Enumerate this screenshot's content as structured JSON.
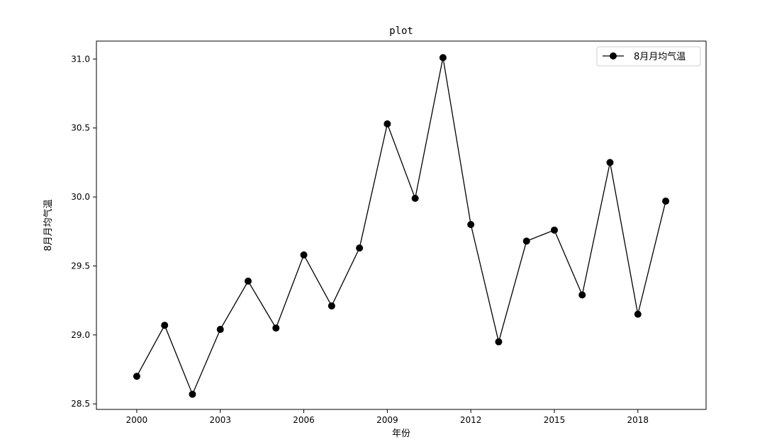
{
  "chart_data": {
    "type": "line",
    "title": "plot",
    "xlabel": "年份",
    "ylabel": "8月月均气温",
    "x": [
      2000,
      2001,
      2002,
      2003,
      2004,
      2005,
      2006,
      2007,
      2008,
      2009,
      2010,
      2011,
      2012,
      2013,
      2014,
      2015,
      2016,
      2017,
      2018,
      2019
    ],
    "series": [
      {
        "name": "8月月均气温",
        "color": "#000000",
        "marker": "circle",
        "values": [
          28.7,
          29.07,
          28.57,
          29.04,
          29.39,
          29.05,
          29.58,
          29.21,
          29.63,
          30.53,
          29.99,
          31.01,
          29.8,
          28.95,
          29.68,
          29.76,
          29.29,
          30.25,
          29.15,
          29.97
        ]
      }
    ],
    "xlim": [
      1998.55,
      2020.45
    ],
    "ylim": [
      28.46,
      31.13
    ],
    "xticks": [
      2000,
      2003,
      2006,
      2009,
      2012,
      2015,
      2018
    ],
    "yticks": [
      28.5,
      29.0,
      29.5,
      30.0,
      30.5,
      31.0
    ],
    "ytick_labels": [
      "28.5",
      "29.0",
      "29.5",
      "30.0",
      "30.5",
      "31.0"
    ],
    "grid": false,
    "legend_position": "top-right"
  }
}
